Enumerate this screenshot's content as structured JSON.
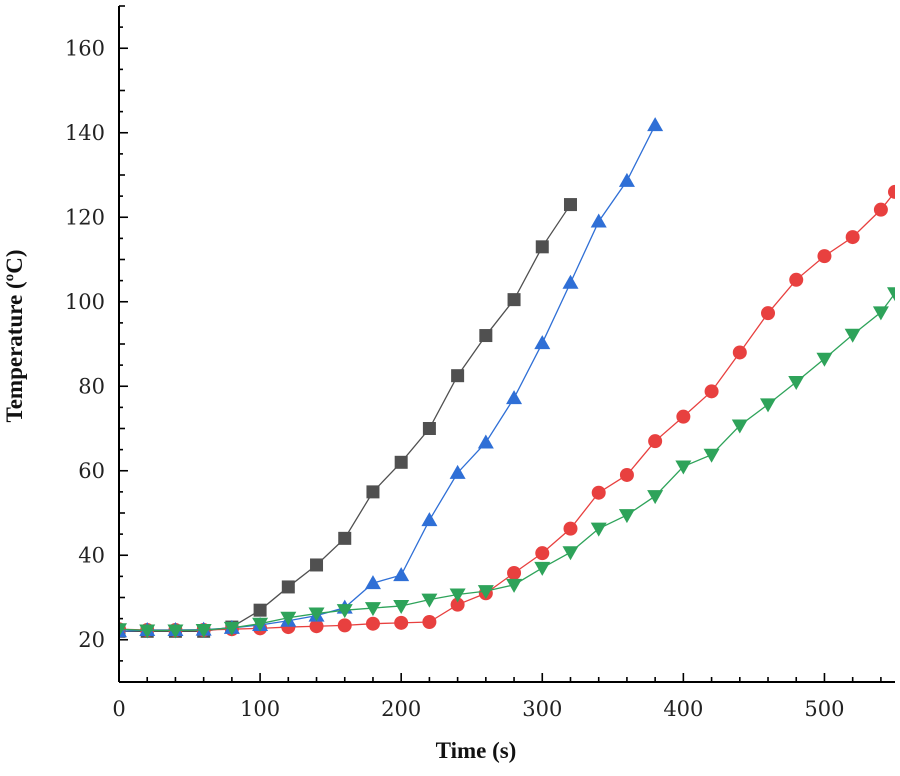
{
  "chart_data": {
    "type": "line",
    "title": "",
    "xlabel": "Time (s)",
    "ylabel": "Temperature (ºC)",
    "xlim": [
      0,
      550
    ],
    "ylim": [
      10,
      170
    ],
    "x_ticks": [
      0,
      100,
      200,
      300,
      400,
      500
    ],
    "y_ticks": [
      20,
      40,
      60,
      80,
      100,
      120,
      140,
      160
    ],
    "grid": false,
    "legend": "none",
    "series": [
      {
        "name": "series-1",
        "color": "#505050",
        "marker": "square",
        "x": [
          0,
          20,
          40,
          60,
          80,
          100,
          120,
          140,
          160,
          180,
          200,
          220,
          240,
          260,
          280,
          300,
          320
        ],
        "y": [
          22,
          22,
          22,
          22,
          23,
          27,
          32.5,
          37.7,
          44,
          55,
          62,
          70,
          82.5,
          92,
          100.5,
          113,
          123
        ]
      },
      {
        "name": "series-2",
        "color": "#e8403f",
        "marker": "circle",
        "x": [
          0,
          20,
          40,
          60,
          80,
          100,
          120,
          140,
          160,
          180,
          200,
          220,
          240,
          260,
          280,
          300,
          320,
          340,
          360,
          380,
          400,
          420,
          440,
          460,
          480,
          500,
          520,
          540,
          550
        ],
        "y": [
          22.5,
          22.3,
          22.3,
          22.3,
          22.5,
          22.7,
          23,
          23.2,
          23.4,
          23.8,
          24,
          24.2,
          28.3,
          31,
          35.8,
          40.5,
          46.3,
          54.8,
          59,
          67,
          72.8,
          78.8,
          88,
          97.3,
          105.2,
          110.8,
          115.3,
          121.8,
          126
        ]
      },
      {
        "name": "series-3",
        "color": "#2f6fd6",
        "marker": "triangle-up",
        "x": [
          0,
          20,
          40,
          60,
          80,
          100,
          120,
          140,
          160,
          180,
          200,
          220,
          240,
          260,
          280,
          300,
          320,
          340,
          360,
          380
        ],
        "y": [
          22,
          22.3,
          22.3,
          22.4,
          22.8,
          23.5,
          24.5,
          25.7,
          27.6,
          33.4,
          35.3,
          48.3,
          59.5,
          66.7,
          77.2,
          90.2,
          104.5,
          119,
          128.6,
          141.8
        ]
      },
      {
        "name": "series-4",
        "color": "#2ea35a",
        "marker": "triangle-down",
        "x": [
          0,
          20,
          40,
          60,
          80,
          100,
          120,
          140,
          160,
          180,
          200,
          220,
          240,
          260,
          280,
          300,
          320,
          340,
          360,
          380,
          400,
          420,
          440,
          460,
          480,
          500,
          520,
          540,
          550
        ],
        "y": [
          22.5,
          22.2,
          22.2,
          22.3,
          22.8,
          23.8,
          25.2,
          26.2,
          27,
          27.5,
          28,
          29.5,
          30.7,
          31.5,
          33,
          37,
          40.7,
          46.3,
          49.5,
          54,
          61,
          63.8,
          70.7,
          75.7,
          81,
          86.5,
          92.2,
          97.5,
          102
        ]
      }
    ]
  }
}
